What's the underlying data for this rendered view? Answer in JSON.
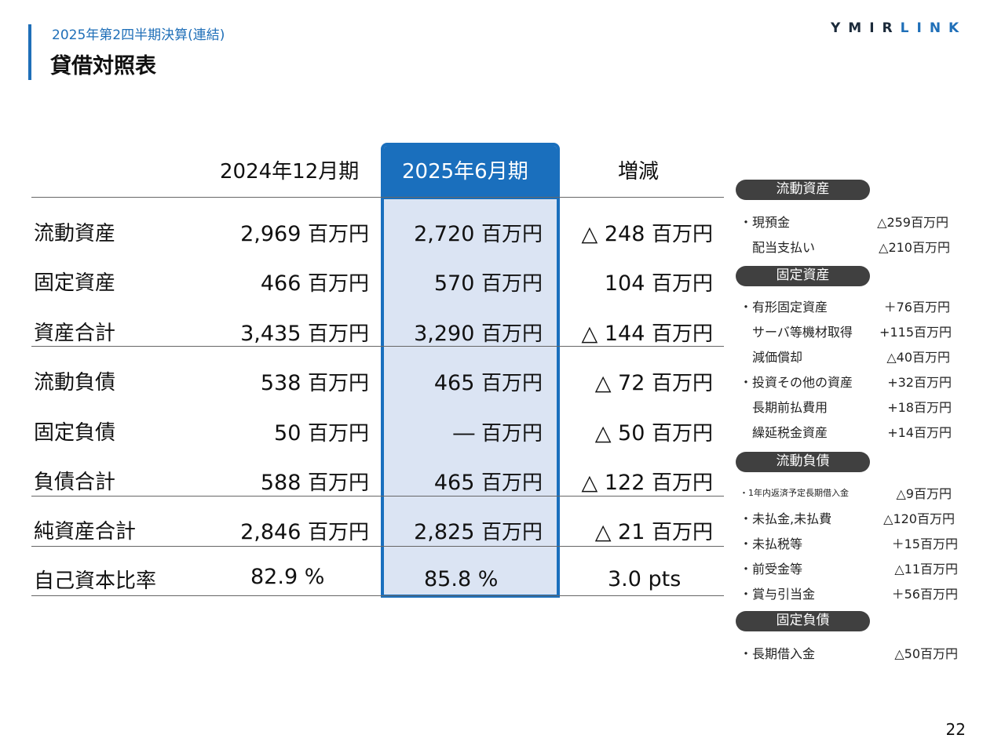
{
  "header": {
    "subtitle": "2025年第2四半期決算(連結)",
    "title": "貸借対照表",
    "logo_part1": "YMIR",
    "logo_part2": "LINK"
  },
  "table": {
    "columns": [
      "2024年12月期",
      "2025年6月期",
      "増減"
    ],
    "unit": "百万円",
    "rows": [
      {
        "label": "流動資産",
        "v1": "2,969",
        "v2": "2,720",
        "v3": "△ 248"
      },
      {
        "label": "固定資産",
        "v1": "466",
        "v2": "570",
        "v3": "104"
      },
      {
        "label": "資産合計",
        "v1": "3,435",
        "v2": "3,290",
        "v3": "△ 144"
      },
      {
        "label": "流動負債",
        "v1": "538",
        "v2": "465",
        "v3": "△ 72"
      },
      {
        "label": "固定負債",
        "v1": "50",
        "v2": "―",
        "v3": "△ 50"
      },
      {
        "label": "負債合計",
        "v1": "588",
        "v2": "465",
        "v3": "△ 122"
      },
      {
        "label": "純資産合計",
        "v1": "2,846",
        "v2": "2,825",
        "v3": "△ 21"
      }
    ],
    "ratio_row": {
      "label": "自己資本比率",
      "v1": "82.9 %",
      "v2": "85.8 %",
      "v3": "3.0 pts"
    }
  },
  "side_panel": {
    "sections": [
      {
        "title": "流動資産",
        "items": [
          {
            "label": "・現預金",
            "amount": "△259百万円"
          },
          {
            "label": "配当支払い",
            "amount": "△210百万円"
          }
        ]
      },
      {
        "title": "固定資産",
        "items": [
          {
            "label": "・有形固定資産",
            "amount": "＋76百万円"
          },
          {
            "label": "サーバ等機材取得",
            "amount": "+115百万円"
          },
          {
            "label": "減価償却",
            "amount": "△40百万円"
          },
          {
            "label": "・投資その他の資産",
            "amount": "+32百万円"
          },
          {
            "label": "長期前払費用",
            "amount": "+18百万円"
          },
          {
            "label": "繰延税金資産",
            "amount": "+14百万円"
          }
        ]
      },
      {
        "title": "流動負債",
        "items": [
          {
            "label": "・1年内返済予定長期借入金",
            "amount": "△9百万円"
          },
          {
            "label": "・未払金,未払費",
            "amount": "△120百万円"
          },
          {
            "label": "・未払税等",
            "amount": "＋15百万円"
          },
          {
            "label": "・前受金等",
            "amount": "△11百万円"
          },
          {
            "label": "・賞与引当金",
            "amount": "＋56百万円"
          }
        ]
      },
      {
        "title": "固定負債",
        "items": [
          {
            "label": "・長期借入金",
            "amount": "△50百万円"
          }
        ]
      }
    ]
  },
  "page_number": "22"
}
